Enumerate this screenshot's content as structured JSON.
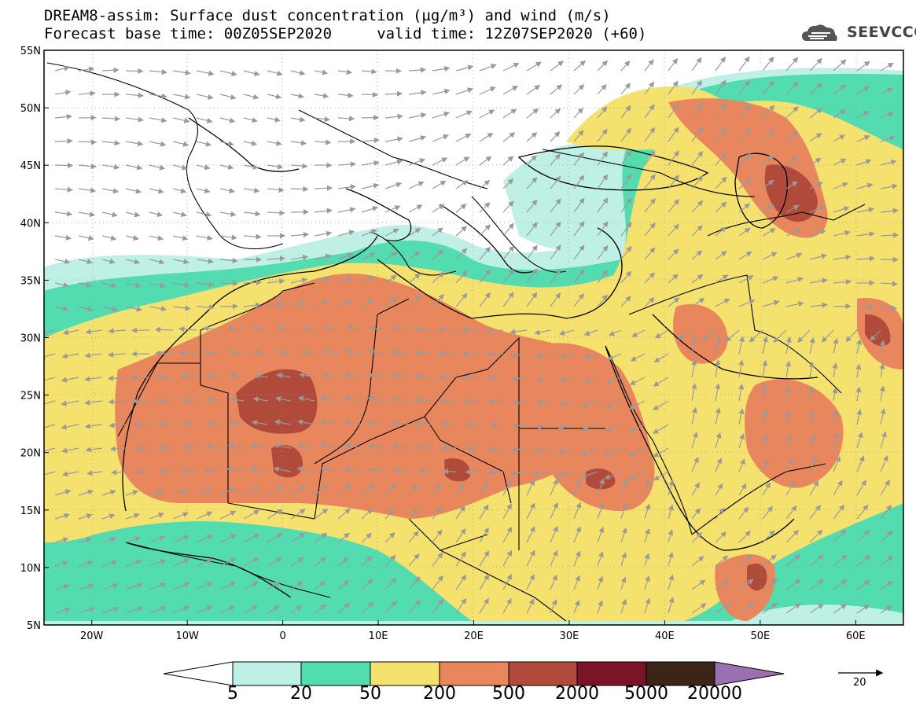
{
  "header": {
    "title_line1": "DREAM8-assim: Surface dust concentration (µg/m³) and wind (m/s)",
    "title_line2": "Forecast base time: 00Z05SEP2020     valid time: 12Z07SEP2020 (+60)"
  },
  "logo": {
    "text": "SEEVCCC",
    "icon": "cloud-icon"
  },
  "map": {
    "lon_ticks": [
      "20W",
      "10W",
      "0",
      "10E",
      "20E",
      "30E",
      "40E",
      "50E",
      "60E"
    ],
    "lat_ticks": [
      "55N",
      "50N",
      "45N",
      "40N",
      "35N",
      "30N",
      "25N",
      "20N",
      "15N",
      "10N",
      "5N"
    ],
    "lon_range": [
      -25,
      65
    ],
    "lat_range": [
      5,
      55
    ]
  },
  "colorbar": {
    "labels": [
      "5",
      "20",
      "50",
      "200",
      "500",
      "2000",
      "5000",
      "20000"
    ],
    "colors": [
      "#bff0e6",
      "#52dcb0",
      "#f5e16e",
      "#e8875e",
      "#b04b3c",
      "#7a1428",
      "#3c2416",
      "#9b70b0"
    ]
  },
  "reference_vector": {
    "label": "20"
  },
  "colors": {
    "wind_arrow": "#9a9a9a",
    "border": "#000000",
    "low": "#ffffff"
  }
}
